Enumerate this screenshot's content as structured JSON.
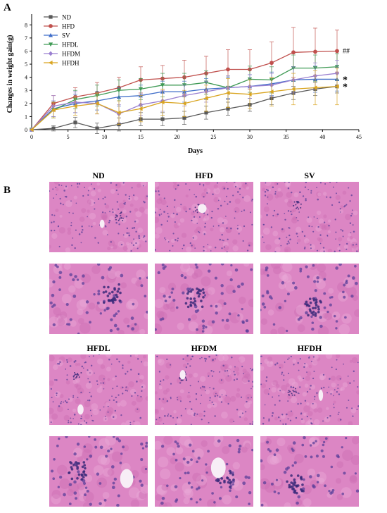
{
  "panel_a_label": "A",
  "panel_b_label": "B",
  "colors": {
    "ND": "#5a5a5a",
    "HFD": "#c0504d",
    "SV": "#3f6dc9",
    "HFDL": "#3f9a55",
    "HFDM": "#9a7fd0",
    "HFDH": "#d9a521",
    "tissue": "#dc86c4",
    "nuclei": "#5b3f9a"
  },
  "chart_data": {
    "type": "line",
    "title": "",
    "xlabel": "Days",
    "ylabel": "Changes in weight gain(g)",
    "xlim": [
      0,
      45
    ],
    "ylim": [
      0,
      8.5
    ],
    "xticks": [
      0,
      5,
      10,
      15,
      20,
      25,
      30,
      35,
      40,
      45
    ],
    "yticks": [
      0,
      1,
      2,
      3,
      4,
      5,
      6,
      7,
      8
    ],
    "x": [
      0,
      3,
      6,
      9,
      12,
      15,
      18,
      21,
      24,
      27,
      30,
      33,
      36,
      39,
      42
    ],
    "legend_position": "top-left",
    "series": [
      {
        "name": "ND",
        "marker": "square",
        "values": [
          0,
          0.1,
          0.55,
          0.1,
          0.4,
          0.8,
          0.8,
          0.9,
          1.3,
          1.6,
          1.9,
          2.4,
          2.8,
          3.1,
          3.3
        ],
        "errors": [
          0,
          0.2,
          0.4,
          0.4,
          0.5,
          0.5,
          0.5,
          0.5,
          0.5,
          0.5,
          0.5,
          0.5,
          0.5,
          0.5,
          0.5
        ]
      },
      {
        "name": "HFD",
        "marker": "circle",
        "values": [
          0,
          2.0,
          2.5,
          2.8,
          3.2,
          3.8,
          3.9,
          4.0,
          4.3,
          4.6,
          4.6,
          5.1,
          5.9,
          5.95,
          6.0
        ],
        "errors": [
          0,
          0.6,
          0.7,
          0.8,
          0.8,
          1.0,
          1.0,
          1.3,
          1.3,
          1.5,
          1.5,
          1.6,
          1.9,
          1.8,
          1.6
        ]
      },
      {
        "name": "SV",
        "marker": "triangle",
        "values": [
          0,
          1.6,
          2.0,
          2.2,
          2.5,
          2.6,
          2.9,
          2.9,
          3.1,
          3.2,
          3.3,
          3.5,
          3.8,
          3.85,
          3.85
        ],
        "errors": [
          0,
          0.6,
          0.7,
          0.7,
          0.7,
          0.8,
          0.8,
          0.8,
          0.8,
          0.8,
          0.9,
          0.9,
          1.0,
          1.0,
          0.9
        ]
      },
      {
        "name": "HFDL",
        "marker": "triangle-down",
        "values": [
          0,
          1.5,
          2.3,
          2.6,
          3.0,
          3.1,
          3.4,
          3.4,
          3.6,
          3.2,
          3.85,
          3.8,
          4.7,
          4.7,
          4.8
        ],
        "errors": [
          0,
          0.6,
          0.7,
          0.8,
          0.8,
          0.8,
          0.9,
          0.9,
          0.9,
          0.9,
          1.0,
          1.0,
          1.0,
          1.0,
          1.0
        ]
      },
      {
        "name": "HFDM",
        "marker": "diamond",
        "values": [
          0,
          1.8,
          2.1,
          2.0,
          1.2,
          1.9,
          2.2,
          2.6,
          2.9,
          3.2,
          3.3,
          3.4,
          3.8,
          4.1,
          4.3
        ],
        "errors": [
          0,
          0.8,
          0.8,
          0.8,
          0.7,
          0.8,
          0.8,
          0.8,
          0.8,
          0.9,
          0.9,
          0.9,
          1.0,
          1.0,
          1.0
        ]
      },
      {
        "name": "HFDH",
        "marker": "triangle-left",
        "values": [
          0,
          1.5,
          1.8,
          2.0,
          1.3,
          1.6,
          2.1,
          2.0,
          2.4,
          2.8,
          2.7,
          2.9,
          3.1,
          3.2,
          3.3
        ],
        "errors": [
          0,
          0.6,
          0.7,
          0.8,
          0.9,
          1.0,
          1.0,
          1.0,
          1.0,
          1.1,
          1.1,
          1.1,
          1.2,
          1.3,
          1.4
        ]
      }
    ],
    "annotations": [
      {
        "text": "##",
        "series": "HFD"
      },
      {
        "text": "*",
        "series": "SV"
      },
      {
        "text": "*",
        "series": "HFDH"
      }
    ]
  },
  "histology": {
    "titles": [
      "ND",
      "HFD",
      "SV",
      "HFDL",
      "HFDM",
      "HFDH"
    ]
  }
}
